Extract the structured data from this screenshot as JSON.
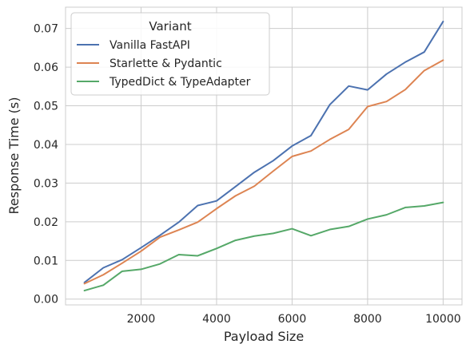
{
  "chart_data": {
    "type": "line",
    "xlabel": "Payload Size",
    "ylabel": "Response Time (s)",
    "xlim": [
      0,
      10500
    ],
    "ylim": [
      -0.0015,
      0.0755
    ],
    "xticks": [
      2000,
      4000,
      6000,
      8000,
      10000
    ],
    "yticks": [
      0.0,
      0.01,
      0.02,
      0.03,
      0.04,
      0.05,
      0.06,
      0.07
    ],
    "xtick_labels": [
      "2000",
      "4000",
      "6000",
      "8000",
      "10000"
    ],
    "ytick_labels": [
      "0.00",
      "0.01",
      "0.02",
      "0.03",
      "0.04",
      "0.05",
      "0.06",
      "0.07"
    ],
    "grid": true,
    "legend": {
      "title": "Variant",
      "position": "top-left"
    },
    "x": [
      500,
      1000,
      1500,
      2000,
      2500,
      3000,
      3500,
      4000,
      4500,
      5000,
      5500,
      6000,
      6500,
      7000,
      7500,
      8000,
      8500,
      9000,
      9500,
      10000
    ],
    "series": [
      {
        "name": "Vanilla FastAPI",
        "color": "#4c72b0",
        "values": [
          0.0043,
          0.0081,
          0.0102,
          0.0133,
          0.0165,
          0.0199,
          0.0242,
          0.0254,
          0.0291,
          0.0328,
          0.0358,
          0.0396,
          0.0423,
          0.0503,
          0.0551,
          0.0541,
          0.0582,
          0.0613,
          0.0639,
          0.0718
        ]
      },
      {
        "name": "Starlette & Pydantic",
        "color": "#dd8452",
        "values": [
          0.004,
          0.0063,
          0.0093,
          0.0124,
          0.016,
          0.0179,
          0.0199,
          0.0234,
          0.0267,
          0.0292,
          0.0331,
          0.0369,
          0.0383,
          0.0413,
          0.0439,
          0.0498,
          0.0511,
          0.0542,
          0.0591,
          0.0618
        ]
      },
      {
        "name": "TypedDict & TypeAdapter",
        "color": "#55a868",
        "values": [
          0.0022,
          0.0036,
          0.0072,
          0.0077,
          0.0091,
          0.0115,
          0.0112,
          0.0131,
          0.0152,
          0.0163,
          0.017,
          0.0182,
          0.0164,
          0.018,
          0.0188,
          0.0207,
          0.0218,
          0.0237,
          0.0241,
          0.025
        ]
      }
    ]
  }
}
